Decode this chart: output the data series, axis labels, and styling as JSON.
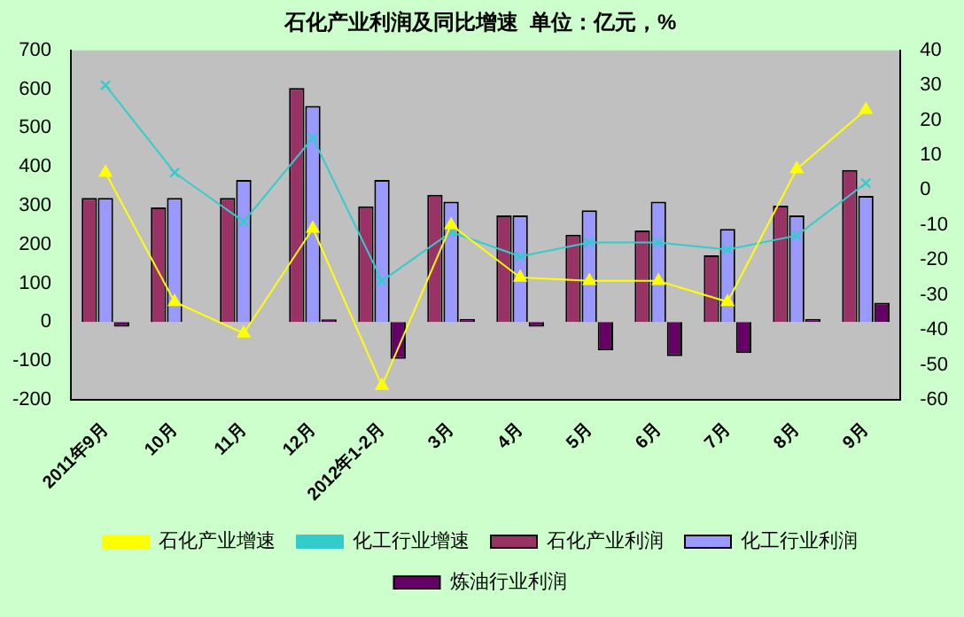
{
  "chart_data": {
    "type": "bar",
    "title": "石化产业利润及同比增速  单位：亿元，%",
    "categories": [
      "2011年9月",
      "10月",
      "11月",
      "12月",
      "2012年1-2月",
      "3月",
      "4月",
      "5月",
      "6月",
      "7月",
      "8月",
      "9月"
    ],
    "series": [
      {
        "name": "石化产业利润",
        "color": "#993366",
        "values": [
          320,
          295,
          320,
          603,
          298,
          328,
          275,
          225,
          236,
          172,
          300,
          392
        ]
      },
      {
        "name": "化工行业利润",
        "color": "#9999ff",
        "values": [
          320,
          320,
          366,
          557,
          366,
          310,
          275,
          288,
          310,
          240,
          275,
          325
        ]
      },
      {
        "name": "炼油行业利润",
        "color": "#660066",
        "values": [
          -12,
          0,
          0,
          7,
          -95,
          8,
          -12,
          -73,
          -88,
          -80,
          8,
          50
        ]
      },
      {
        "name": "石化产业增速",
        "type": "line",
        "axis": "y2",
        "color": "#ffff00",
        "marker": "triangle",
        "values": [
          5,
          -32,
          -41,
          -11,
          -56,
          -10,
          -25,
          -26,
          -26,
          -32,
          6,
          23
        ]
      },
      {
        "name": "化工行业增速",
        "type": "line",
        "axis": "y2",
        "color": "#33cccc",
        "marker": "cross",
        "values": [
          30,
          5,
          -9,
          15,
          -26,
          -12,
          -19,
          -15,
          -15,
          -17,
          -13,
          2
        ]
      }
    ],
    "ylim": [
      -200,
      700
    ],
    "yticks": [
      -200,
      -100,
      0,
      100,
      200,
      300,
      400,
      500,
      600,
      700
    ],
    "y2lim": [
      -60,
      40
    ],
    "y2ticks": [
      -60,
      -50,
      -40,
      -30,
      -20,
      -10,
      0,
      10,
      20,
      30,
      40
    ],
    "grid": false,
    "legend": "bottom"
  }
}
